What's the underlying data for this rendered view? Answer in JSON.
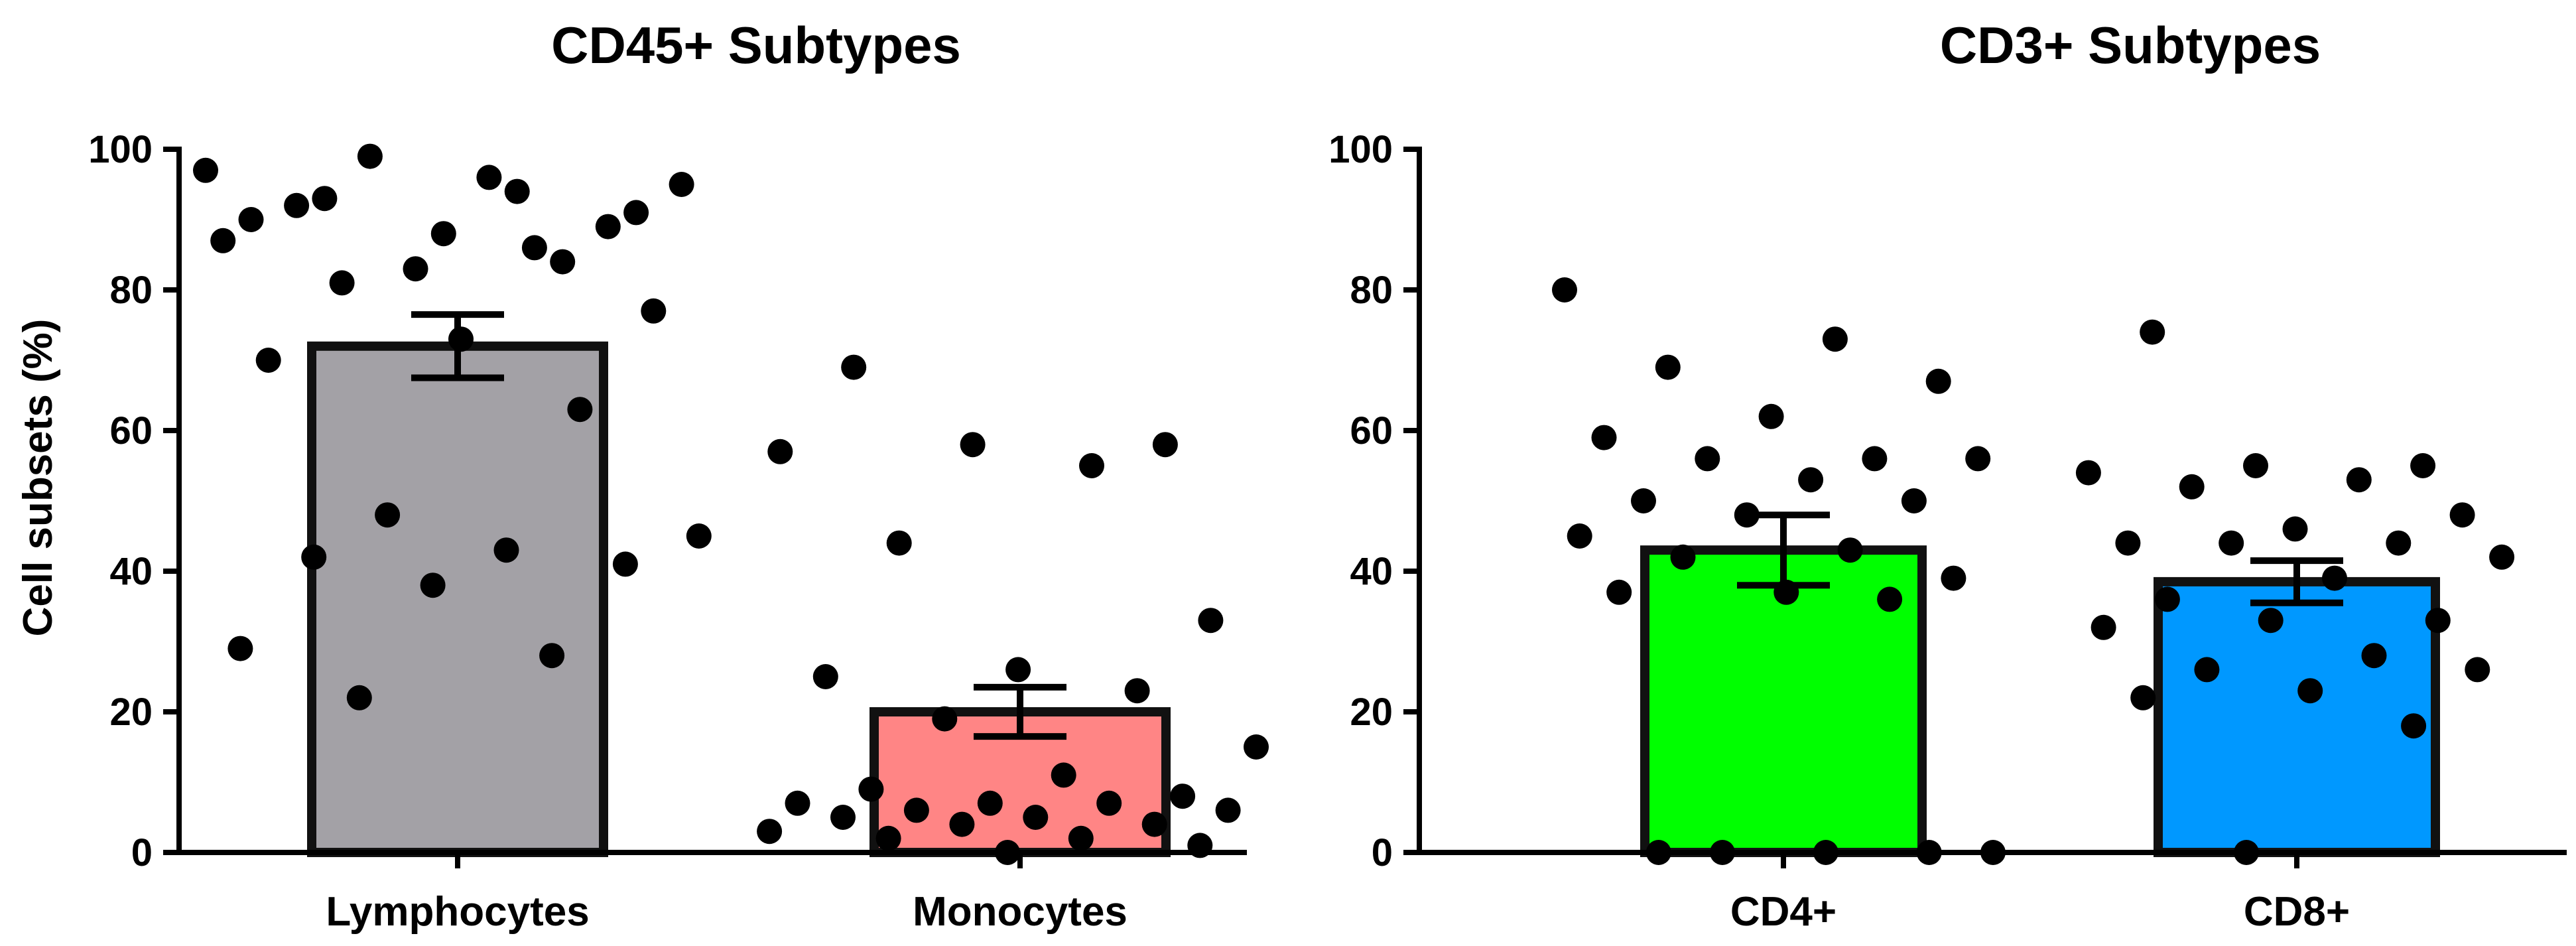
{
  "chart_data": [
    {
      "type": "bar",
      "title": "CD45+ Subtypes",
      "xlabel": "",
      "ylabel": "Cell subsets (%)",
      "ylim": [
        0,
        100
      ],
      "yticks": [
        "0",
        "20",
        "40",
        "60",
        "80",
        "100"
      ],
      "categories": [
        "Lymphocytes",
        "Monocytes"
      ],
      "values": [
        72,
        20
      ],
      "error": [
        4.5,
        3.5
      ],
      "colors": [
        "#a3a1a6",
        "#ff8585"
      ],
      "points": [
        [
          97,
          94,
          93,
          91,
          88,
          90,
          84,
          99,
          95,
          96,
          92,
          89,
          83,
          87,
          86,
          81,
          77,
          73,
          70,
          63,
          48,
          45,
          43,
          42,
          41,
          38,
          29,
          28,
          22
        ],
        [
          69,
          58,
          58,
          57,
          55,
          44,
          33,
          26,
          25,
          23,
          19,
          15,
          11,
          9,
          8,
          7,
          7,
          7,
          6,
          6,
          5,
          5,
          4,
          4,
          3,
          2,
          2,
          1,
          0
        ]
      ]
    },
    {
      "type": "bar",
      "title": "CD3+ Subtypes",
      "xlabel": "",
      "ylabel": "",
      "ylim": [
        0,
        100
      ],
      "yticks": [
        "0",
        "20",
        "40",
        "60",
        "80",
        "100"
      ],
      "categories": [
        "CD4+",
        "CD8+"
      ],
      "values": [
        43,
        38.5
      ],
      "error": [
        5,
        3
      ],
      "colors": [
        "#00ff00",
        "#0098ff"
      ],
      "points": [
        [
          80,
          73,
          69,
          67,
          62,
          59,
          56,
          56,
          56,
          53,
          50,
          50,
          48,
          45,
          43,
          42,
          39,
          37,
          37,
          36,
          0,
          0,
          0,
          0,
          0
        ],
        [
          74,
          55,
          55,
          54,
          53,
          52,
          48,
          46,
          44,
          44,
          44,
          42,
          39,
          36,
          33,
          33,
          32,
          28,
          26,
          26,
          23,
          22,
          18,
          0
        ]
      ]
    }
  ]
}
